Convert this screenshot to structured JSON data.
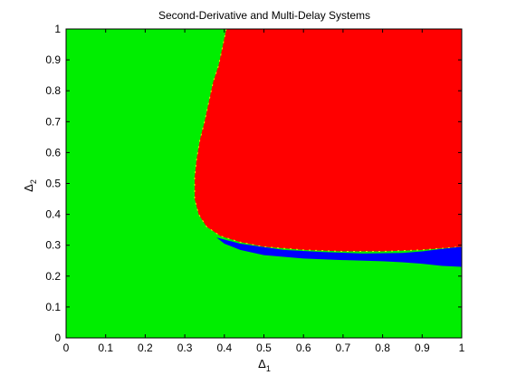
{
  "chart_data": {
    "type": "heatmap",
    "title": "Second-Derivative and Multi-Delay Systems",
    "xlabel": "Δ",
    "xlabel_sub": "1",
    "ylabel": "Δ",
    "ylabel_sub": "2",
    "xlim": [
      0,
      1
    ],
    "ylim": [
      0,
      1
    ],
    "xticks": [
      "0",
      "0.1",
      "0.2",
      "0.3",
      "0.4",
      "0.5",
      "0.6",
      "0.7",
      "0.8",
      "0.9",
      "1"
    ],
    "yticks": [
      "0",
      "0.1",
      "0.2",
      "0.3",
      "0.4",
      "0.5",
      "0.6",
      "0.7",
      "0.8",
      "0.9",
      "1"
    ],
    "colors": {
      "background_region": "#00ee00",
      "red_region": "#ff0000",
      "blue_region": "#0000ff",
      "edge": "#e8e800"
    },
    "red_region_boundary": [
      [
        0.405,
        1.0
      ],
      [
        0.395,
        0.94
      ],
      [
        0.385,
        0.88
      ],
      [
        0.372,
        0.83
      ],
      [
        0.36,
        0.76
      ],
      [
        0.35,
        0.7
      ],
      [
        0.338,
        0.64
      ],
      [
        0.33,
        0.58
      ],
      [
        0.325,
        0.52
      ],
      [
        0.325,
        0.45
      ],
      [
        0.335,
        0.4
      ],
      [
        0.355,
        0.36
      ],
      [
        0.39,
        0.33
      ],
      [
        0.44,
        0.31
      ],
      [
        0.5,
        0.295
      ],
      [
        0.6,
        0.285
      ],
      [
        0.7,
        0.28
      ],
      [
        0.8,
        0.28
      ],
      [
        0.9,
        0.285
      ],
      [
        0.95,
        0.29
      ],
      [
        1.0,
        0.295
      ],
      [
        1.0,
        1.0
      ]
    ],
    "blue_region_boundary": [
      [
        0.38,
        0.325
      ],
      [
        0.44,
        0.305
      ],
      [
        0.55,
        0.285
      ],
      [
        0.65,
        0.278
      ],
      [
        0.75,
        0.273
      ],
      [
        0.85,
        0.275
      ],
      [
        0.9,
        0.28
      ],
      [
        0.95,
        0.288
      ],
      [
        1.0,
        0.295
      ],
      [
        1.0,
        0.23
      ],
      [
        0.95,
        0.233
      ],
      [
        0.9,
        0.24
      ],
      [
        0.85,
        0.245
      ],
      [
        0.8,
        0.248
      ],
      [
        0.7,
        0.252
      ],
      [
        0.6,
        0.257
      ],
      [
        0.5,
        0.268
      ],
      [
        0.44,
        0.285
      ],
      [
        0.4,
        0.305
      ]
    ]
  }
}
